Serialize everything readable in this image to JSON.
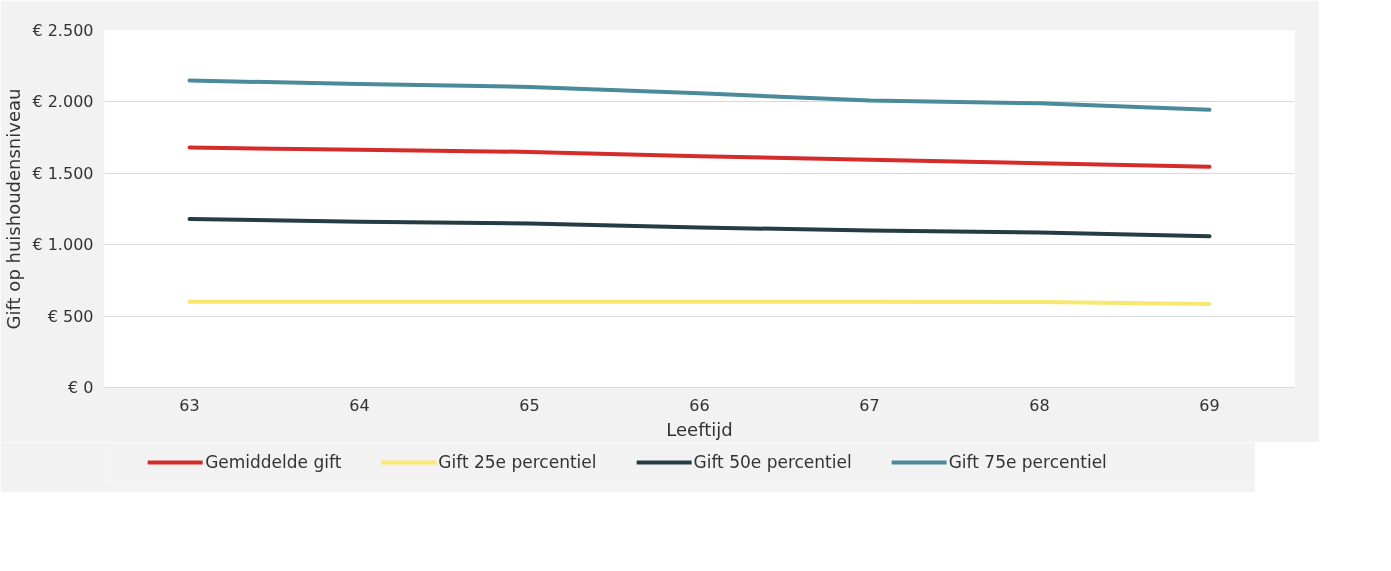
{
  "chart_data": {
    "type": "line",
    "xlabel": "Leeftijd",
    "ylabel": "Gift op huishoudensniveau",
    "categories": [
      "63",
      "64",
      "65",
      "66",
      "67",
      "68",
      "69"
    ],
    "series": [
      {
        "name": "Gemiddelde gift",
        "color": "#d62b2b",
        "values": [
          1680,
          1665,
          1650,
          1620,
          1595,
          1570,
          1545
        ]
      },
      {
        "name": "Gift 25e percentiel",
        "color": "#f9e76f",
        "values": [
          600,
          600,
          600,
          600,
          600,
          598,
          585
        ]
      },
      {
        "name": "Gift 50e percentiel",
        "color": "#243c44",
        "values": [
          1180,
          1160,
          1148,
          1120,
          1100,
          1085,
          1060
        ]
      },
      {
        "name": "Gift 75e percentiel",
        "color": "#4a8a9a",
        "values": [
          2150,
          2125,
          2105,
          2060,
          2010,
          1990,
          1945
        ]
      }
    ],
    "ylim": [
      0,
      2500
    ],
    "yticks": [
      {
        "value": 0,
        "label": "€ 0"
      },
      {
        "value": 500,
        "label": "€ 500"
      },
      {
        "value": 1000,
        "label": "€ 1.000"
      },
      {
        "value": 1500,
        "label": "€ 1.500"
      },
      {
        "value": 2000,
        "label": "€ 2.000"
      },
      {
        "value": 2500,
        "label": "€ 2.500"
      }
    ],
    "grid": "y",
    "legend": "bottom",
    "marker": "none",
    "line_style": "solid"
  }
}
